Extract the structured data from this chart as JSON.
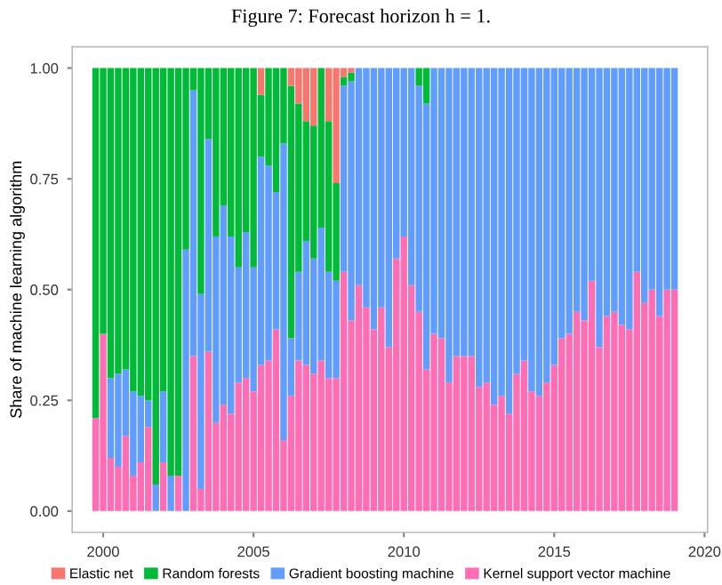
{
  "chart_data": {
    "type": "bar",
    "stacked": true,
    "title": "Figure 7: Forecast horizon h = 1.",
    "ylabel": "Share of machine learning algorithm",
    "x": [
      1999.75,
      2000,
      2000.25,
      2000.5,
      2000.75,
      2001,
      2001.25,
      2001.5,
      2001.75,
      2002,
      2002.25,
      2002.5,
      2002.75,
      2003,
      2003.25,
      2003.5,
      2003.75,
      2004,
      2004.25,
      2004.5,
      2004.75,
      2005,
      2005.25,
      2005.5,
      2005.75,
      2006,
      2006.25,
      2006.5,
      2006.75,
      2007,
      2007.25,
      2007.5,
      2007.75,
      2008,
      2008.25,
      2008.5,
      2008.75,
      2009,
      2009.25,
      2009.5,
      2009.75,
      2010,
      2010.25,
      2010.5,
      2010.75,
      2011,
      2011.25,
      2011.5,
      2011.75,
      2012,
      2012.25,
      2012.5,
      2012.75,
      2013,
      2013.25,
      2013.5,
      2013.75,
      2014,
      2014.25,
      2014.5,
      2014.75,
      2015,
      2015.25,
      2015.5,
      2015.75,
      2016,
      2016.25,
      2016.5,
      2016.75,
      2017,
      2017.25,
      2017.5,
      2017.75,
      2018,
      2018.25,
      2018.5,
      2018.75,
      2019
    ],
    "series": [
      {
        "name": "Kernel support vector machine",
        "color": "#ff6eb4",
        "values": [
          0.21,
          0.4,
          0.12,
          0.1,
          0.17,
          0.08,
          0.11,
          0.19,
          0,
          0.11,
          0,
          0.08,
          0,
          0.35,
          0.05,
          0.36,
          0.2,
          0.24,
          0.22,
          0.29,
          0.3,
          0.27,
          0.33,
          0.34,
          0.41,
          0.16,
          0.26,
          0.34,
          0.33,
          0.31,
          0.34,
          0.3,
          0.3,
          0.54,
          0.43,
          0.51,
          0.46,
          0.41,
          0.46,
          0.37,
          0.57,
          0.62,
          0.51,
          0.45,
          0.32,
          0.4,
          0.39,
          0.29,
          0.35,
          0.35,
          0.35,
          0.28,
          0.29,
          0.24,
          0.26,
          0.22,
          0.31,
          0.34,
          0.27,
          0.26,
          0.29,
          0.33,
          0.39,
          0.4,
          0.45,
          0.43,
          0.52,
          0.37,
          0.44,
          0.45,
          0.42,
          0.41,
          0.54,
          0.47,
          0.5,
          0.44,
          0.5,
          0.5
        ]
      },
      {
        "name": "Gradient boosting machine",
        "color": "#619cff",
        "values": [
          0,
          0,
          0.18,
          0.21,
          0.15,
          0.19,
          0.15,
          0.06,
          0.06,
          0.16,
          0.08,
          0,
          0.59,
          0.6,
          0.44,
          0.48,
          0.42,
          0.45,
          0.4,
          0.26,
          0.33,
          0.28,
          0.47,
          0.44,
          0.31,
          0.67,
          0.13,
          0.2,
          0.28,
          0.26,
          0.3,
          0.24,
          0.22,
          0.42,
          0.54,
          0.49,
          0.54,
          0.59,
          0.54,
          0.63,
          0.43,
          0.38,
          0.49,
          0.51,
          0.6,
          0.6,
          0.61,
          0.71,
          0.65,
          0.65,
          0.65,
          0.72,
          0.71,
          0.76,
          0.74,
          0.78,
          0.69,
          0.66,
          0.73,
          0.74,
          0.71,
          0.67,
          0.61,
          0.6,
          0.55,
          0.57,
          0.48,
          0.63,
          0.56,
          0.55,
          0.58,
          0.59,
          0.46,
          0.53,
          0.5,
          0.56,
          0.5,
          0.5
        ]
      },
      {
        "name": "Random forests",
        "color": "#00ba38",
        "values": [
          0.79,
          0.6,
          0.7,
          0.69,
          0.68,
          0.73,
          0.74,
          0.75,
          0.94,
          0.73,
          0.92,
          0.92,
          0.41,
          0.05,
          0.51,
          0.16,
          0.38,
          0.31,
          0.38,
          0.45,
          0.37,
          0.45,
          0.14,
          0.22,
          0.28,
          0.17,
          0.57,
          0.38,
          0.27,
          0.3,
          0.36,
          0.34,
          0.22,
          0.02,
          0.02,
          0,
          0,
          0,
          0,
          0,
          0,
          0,
          0,
          0.04,
          0.08,
          0,
          0,
          0,
          0,
          0,
          0,
          0,
          0,
          0,
          0,
          0,
          0,
          0,
          0,
          0,
          0,
          0,
          0,
          0,
          0,
          0,
          0,
          0,
          0,
          0,
          0,
          0,
          0,
          0,
          0,
          0,
          0,
          0
        ]
      },
      {
        "name": "Elastic net",
        "color": "#f8766d",
        "values": [
          0,
          0,
          0,
          0,
          0,
          0,
          0,
          0,
          0,
          0,
          0,
          0,
          0,
          0,
          0,
          0,
          0,
          0,
          0,
          0,
          0,
          0,
          0.06,
          0,
          0,
          0,
          0.04,
          0.08,
          0.12,
          0.13,
          0,
          0.12,
          0.26,
          0.02,
          0.01,
          0,
          0,
          0,
          0,
          0,
          0,
          0,
          0,
          0,
          0,
          0,
          0,
          0,
          0,
          0,
          0,
          0,
          0,
          0,
          0,
          0,
          0,
          0,
          0,
          0,
          0,
          0,
          0,
          0,
          0,
          0,
          0,
          0,
          0,
          0,
          0,
          0,
          0,
          0,
          0,
          0,
          0,
          0
        ]
      }
    ],
    "xlim": [
      1998.97,
      2020.1
    ],
    "xticks": [
      2000,
      2005,
      2010,
      2015,
      2020
    ],
    "ylim": [
      -0.048,
      1.048
    ],
    "yticks": [
      {
        "value": 0,
        "label": "0.00"
      },
      {
        "value": 0.25,
        "label": "0.25"
      },
      {
        "value": 0.5,
        "label": "0.50"
      },
      {
        "value": 0.75,
        "label": "0.75"
      },
      {
        "value": 1,
        "label": "1.00"
      }
    ],
    "grid": false,
    "legend": "bottom"
  }
}
